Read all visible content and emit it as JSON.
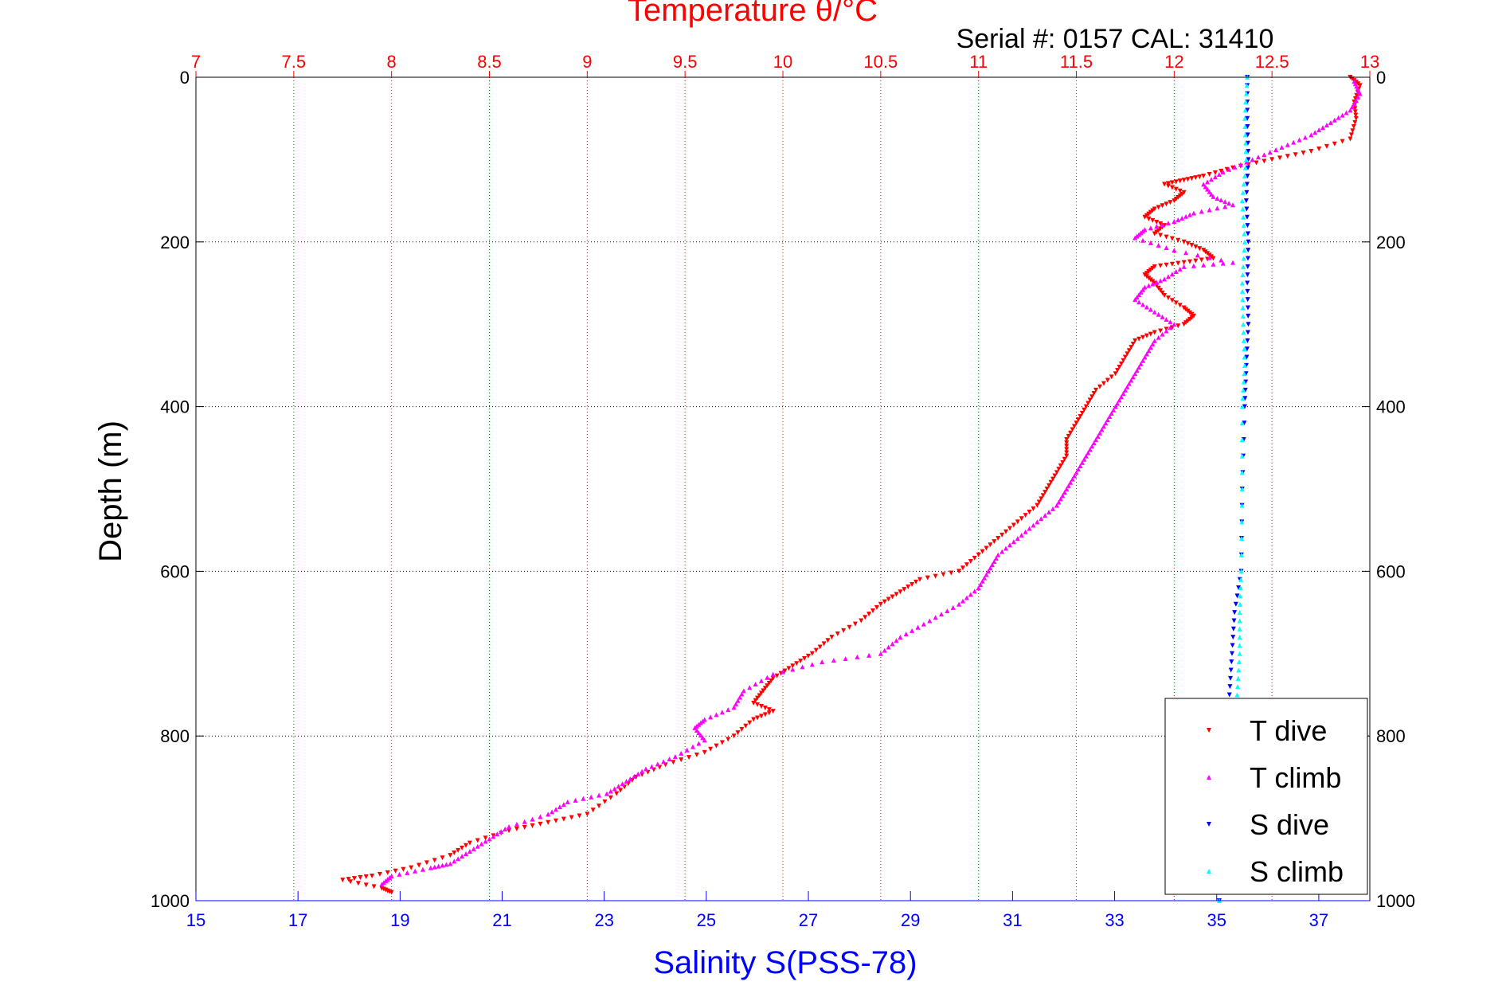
{
  "chart_data": {
    "type": "scatter",
    "title": "Temperature θ/°C",
    "subtitle": "Serial #: 0157  CAL: 31410",
    "ylabel": "Depth (m)",
    "xlabel": "Salinity S(PSS-78)",
    "ylim": [
      0,
      1000
    ],
    "y_reversed": true,
    "temperature_axis": {
      "position": "top",
      "range": [
        7,
        13
      ],
      "ticks": [
        "7",
        "7.5",
        "8",
        "8.5",
        "9",
        "9.5",
        "10",
        "10.5",
        "11",
        "11.5",
        "12",
        "12.5",
        "13"
      ],
      "color": "#ff0000",
      "grid": "dotted"
    },
    "salinity_axis": {
      "position": "bottom",
      "range": [
        15,
        38
      ],
      "ticks": [
        "15",
        "17",
        "19",
        "21",
        "23",
        "25",
        "27",
        "29",
        "31",
        "33",
        "35",
        "37"
      ],
      "color": "#0000ff"
    },
    "depth_ticks": [
      "0",
      "200",
      "400",
      "600",
      "800",
      "1000"
    ],
    "legend_position": "bottom-right",
    "series": [
      {
        "name": "T dive",
        "axis": "temperature",
        "color": "#ff0000",
        "marker": "triangle-down",
        "points": [
          [
            12.9,
            0
          ],
          [
            12.95,
            10
          ],
          [
            12.92,
            30
          ],
          [
            12.93,
            50
          ],
          [
            12.9,
            75
          ],
          [
            12.7,
            90
          ],
          [
            12.5,
            100
          ],
          [
            12.3,
            110
          ],
          [
            12.15,
            120
          ],
          [
            12.05,
            125
          ],
          [
            11.95,
            130
          ],
          [
            12.05,
            140
          ],
          [
            12.0,
            150
          ],
          [
            11.9,
            160
          ],
          [
            11.85,
            170
          ],
          [
            11.95,
            180
          ],
          [
            11.9,
            190
          ],
          [
            12.05,
            200
          ],
          [
            12.15,
            210
          ],
          [
            12.2,
            220
          ],
          [
            12.05,
            225
          ],
          [
            11.9,
            230
          ],
          [
            11.85,
            240
          ],
          [
            11.9,
            250
          ],
          [
            11.95,
            265
          ],
          [
            12.05,
            280
          ],
          [
            12.1,
            290
          ],
          [
            12.05,
            300
          ],
          [
            11.9,
            310
          ],
          [
            11.8,
            320
          ],
          [
            11.75,
            340
          ],
          [
            11.7,
            360
          ],
          [
            11.6,
            380
          ],
          [
            11.55,
            400
          ],
          [
            11.5,
            420
          ],
          [
            11.45,
            440
          ],
          [
            11.45,
            460
          ],
          [
            11.4,
            480
          ],
          [
            11.35,
            500
          ],
          [
            11.3,
            520
          ],
          [
            11.2,
            540
          ],
          [
            11.1,
            560
          ],
          [
            11.0,
            580
          ],
          [
            10.9,
            600
          ],
          [
            10.7,
            610
          ],
          [
            10.6,
            625
          ],
          [
            10.5,
            640
          ],
          [
            10.4,
            660
          ],
          [
            10.25,
            680
          ],
          [
            10.15,
            700
          ],
          [
            10.05,
            715
          ],
          [
            9.95,
            730
          ],
          [
            9.9,
            745
          ],
          [
            9.85,
            760
          ],
          [
            9.95,
            770
          ],
          [
            9.85,
            780
          ],
          [
            9.75,
            800
          ],
          [
            9.6,
            820
          ],
          [
            9.4,
            835
          ],
          [
            9.25,
            850
          ],
          [
            9.15,
            870
          ],
          [
            9.0,
            895
          ],
          [
            8.8,
            905
          ],
          [
            8.6,
            915
          ],
          [
            8.4,
            930
          ],
          [
            8.3,
            945
          ],
          [
            8.1,
            960
          ],
          [
            7.9,
            970
          ],
          [
            7.75,
            975
          ],
          [
            7.95,
            985
          ],
          [
            8.0,
            990
          ]
        ]
      },
      {
        "name": "T climb",
        "axis": "temperature",
        "color": "#ff00ff",
        "marker": "triangle-up",
        "points": [
          [
            12.92,
            5
          ],
          [
            12.95,
            20
          ],
          [
            12.9,
            40
          ],
          [
            12.8,
            55
          ],
          [
            12.7,
            70
          ],
          [
            12.55,
            85
          ],
          [
            12.4,
            100
          ],
          [
            12.25,
            115
          ],
          [
            12.15,
            130
          ],
          [
            12.2,
            145
          ],
          [
            12.3,
            155
          ],
          [
            12.1,
            165
          ],
          [
            12.0,
            175
          ],
          [
            11.85,
            185
          ],
          [
            11.8,
            195
          ],
          [
            12.0,
            210
          ],
          [
            12.3,
            225
          ],
          [
            12.05,
            230
          ],
          [
            11.95,
            245
          ],
          [
            11.85,
            255
          ],
          [
            11.8,
            270
          ],
          [
            11.9,
            285
          ],
          [
            12.0,
            300
          ],
          [
            11.9,
            320
          ],
          [
            11.85,
            340
          ],
          [
            11.8,
            360
          ],
          [
            11.75,
            380
          ],
          [
            11.7,
            400
          ],
          [
            11.65,
            420
          ],
          [
            11.6,
            440
          ],
          [
            11.55,
            460
          ],
          [
            11.5,
            480
          ],
          [
            11.45,
            500
          ],
          [
            11.4,
            520
          ],
          [
            11.3,
            540
          ],
          [
            11.2,
            560
          ],
          [
            11.1,
            580
          ],
          [
            11.05,
            600
          ],
          [
            11.0,
            620
          ],
          [
            10.9,
            640
          ],
          [
            10.75,
            660
          ],
          [
            10.6,
            680
          ],
          [
            10.5,
            700
          ],
          [
            10.2,
            710
          ],
          [
            9.95,
            725
          ],
          [
            9.8,
            745
          ],
          [
            9.75,
            765
          ],
          [
            9.6,
            780
          ],
          [
            9.55,
            790
          ],
          [
            9.6,
            805
          ],
          [
            9.45,
            825
          ],
          [
            9.3,
            840
          ],
          [
            9.2,
            855
          ],
          [
            9.1,
            870
          ],
          [
            8.9,
            880
          ],
          [
            8.8,
            895
          ],
          [
            8.6,
            910
          ],
          [
            8.5,
            925
          ],
          [
            8.4,
            940
          ],
          [
            8.3,
            955
          ],
          [
            8.2,
            960
          ],
          [
            8.0,
            970
          ],
          [
            7.95,
            980
          ]
        ]
      },
      {
        "name": "S dive",
        "axis": "salinity",
        "color": "#0000ff",
        "marker": "triangle-down",
        "points": [
          [
            35.6,
            0
          ],
          [
            35.6,
            50
          ],
          [
            35.62,
            100
          ],
          [
            35.58,
            150
          ],
          [
            35.62,
            200
          ],
          [
            35.6,
            250
          ],
          [
            35.62,
            300
          ],
          [
            35.58,
            350
          ],
          [
            35.55,
            400
          ],
          [
            35.5,
            500
          ],
          [
            35.48,
            600
          ],
          [
            35.35,
            650
          ],
          [
            35.3,
            700
          ],
          [
            35.25,
            750
          ],
          [
            35.2,
            800
          ],
          [
            35.15,
            900
          ],
          [
            35.1,
            950
          ],
          [
            35.05,
            1000
          ]
        ]
      },
      {
        "name": "S climb",
        "axis": "salinity",
        "color": "#00ffff",
        "marker": "triangle-up",
        "points": [
          [
            35.6,
            0
          ],
          [
            35.55,
            50
          ],
          [
            35.58,
            100
          ],
          [
            35.5,
            150
          ],
          [
            35.55,
            200
          ],
          [
            35.5,
            250
          ],
          [
            35.52,
            300
          ],
          [
            35.55,
            350
          ],
          [
            35.5,
            400
          ],
          [
            35.5,
            500
          ],
          [
            35.48,
            600
          ],
          [
            35.45,
            650
          ],
          [
            35.45,
            700
          ],
          [
            35.4,
            750
          ],
          [
            35.35,
            800
          ],
          [
            35.25,
            900
          ],
          [
            35.15,
            950
          ],
          [
            35.05,
            1000
          ]
        ]
      }
    ]
  }
}
